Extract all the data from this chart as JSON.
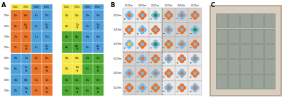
{
  "background_color": "#ffffff",
  "panel_a": {
    "left_colors": [
      [
        "#e8732a",
        "#e8732a",
        "#4fa0d8",
        "#4fa0d8"
      ],
      [
        "#e8732a",
        "#e8732a",
        "#4fa0d8",
        "#4fa0d8"
      ],
      [
        "#e8732a",
        "#e8732a",
        "#4fa0d8",
        "#4fa0d8"
      ],
      [
        "#e8732a",
        "#e8732a",
        "#4fa0d8",
        "#4fa0d8"
      ],
      [
        "#4fa0d8",
        "#4fa0d8",
        "#e8732a",
        "#e8732a"
      ],
      [
        "#4fa0d8",
        "#4fa0d8",
        "#e8732a",
        "#e8732a"
      ],
      [
        "#4fa0d8",
        "#4fa0d8",
        "#e8732a",
        "#e8732a"
      ],
      [
        "#4fa0d8",
        "#4fa0d8",
        "#e8732a",
        "#e8732a"
      ]
    ],
    "left_labels": [
      [
        "A1a",
        "A1b",
        "B1a",
        "B1b"
      ],
      [
        "A1c",
        "A1s\n+N",
        "B1c",
        "B1s\n+N"
      ],
      [
        "C1a",
        "C1b",
        "D1a",
        "D1b"
      ],
      [
        "C1c",
        "C1s\n+N",
        "D1c",
        "D1s\n+N"
      ],
      [
        "B3a",
        "B3b",
        "A3a",
        "A3b"
      ],
      [
        "B3c",
        "B3s\n+N",
        "A3c",
        "A3s\n+N"
      ],
      [
        "D3a",
        "D3b",
        "C3a",
        "C3b"
      ],
      [
        "D3c",
        "D3s\n+N",
        "C3c",
        "C3s\n+N"
      ]
    ],
    "left_header_colors": [
      "#f5e642",
      "#f5e642",
      "#4fa0d8",
      "#4fa0d8"
    ],
    "right_colors": [
      [
        "#f5e642",
        "#f5e642",
        "#4fa0d8",
        "#4fa0d8"
      ],
      [
        "#f5e642",
        "#f5e642",
        "#4fa0d8",
        "#4fa0d8"
      ],
      [
        "#4da832",
        "#4da832",
        "#4fa0d8",
        "#4fa0d8"
      ],
      [
        "#4da832",
        "#4da832",
        "#4fa0d8",
        "#4fa0d8"
      ],
      [
        "#f5e642",
        "#f5e642",
        "#4da832",
        "#4da832"
      ],
      [
        "#f5e642",
        "#f5e642",
        "#4da832",
        "#4da832"
      ],
      [
        "#4da832",
        "#4da832",
        "#4da832",
        "#4da832"
      ],
      [
        "#4da832",
        "#4da832",
        "#4da832",
        "#4da832"
      ]
    ],
    "right_labels": [
      [
        "C2a",
        "C2b",
        "D2a",
        "D2b"
      ],
      [
        "C2c",
        "C2s\n+N",
        "D2c",
        "D2s\n+N"
      ],
      [
        "A2a",
        "A2b",
        "B2a",
        "B2b"
      ],
      [
        "A2c",
        "A2s\n+N",
        "B2c",
        "B2s\n+N"
      ],
      [
        "D4a",
        "D4b",
        "C4a",
        "C4b"
      ],
      [
        "D4c",
        "D4s\n+N",
        "C4c",
        "C4s\n+N"
      ],
      [
        "B4a",
        "B4b",
        "A4a",
        "A4b"
      ],
      [
        "B4c",
        "B4s\n+N",
        "A4c",
        "A4s\n+N"
      ]
    ],
    "right_header_colors": [
      "#f5e642",
      "#f5e642",
      "#4fa0d8",
      "#4fa0d8"
    ],
    "col_labels": [
      "0.50m",
      "0.50m",
      "0.50m",
      "0.50m"
    ],
    "row_labels": [
      "0.50m",
      "0.50m",
      "0.50m",
      "0.50m",
      "0.50m",
      "0.50m",
      "0.50m",
      "0.50m"
    ]
  },
  "panel_b": {
    "grid_rows": 6,
    "grid_cols": 6,
    "light_cell_color": "#e8e8e8",
    "dark_cell_color": "#d0d0d0",
    "orange_color": "#e8732a",
    "blue_color": "#7ab8e8",
    "green_color": "#2d8a2d",
    "yellow_color": "#f5d020",
    "col_headers": [
      "0.125m",
      "0.250m",
      "0.125m",
      "0.125m",
      "0.250m",
      "0.125m"
    ],
    "row_headers": [
      "0.125m",
      "0.250m",
      "0.125m",
      "0.125m",
      "0.250m",
      "0.125m"
    ]
  },
  "panel_c": {
    "tray_color": "#d8cfc0",
    "tray_edge_color": "#b0a088",
    "pot_color": "#9aa49a",
    "pot_edge_color": "#707870",
    "bg_color": "#c8c0b0",
    "pot_rows": 5,
    "pot_cols": 5
  }
}
